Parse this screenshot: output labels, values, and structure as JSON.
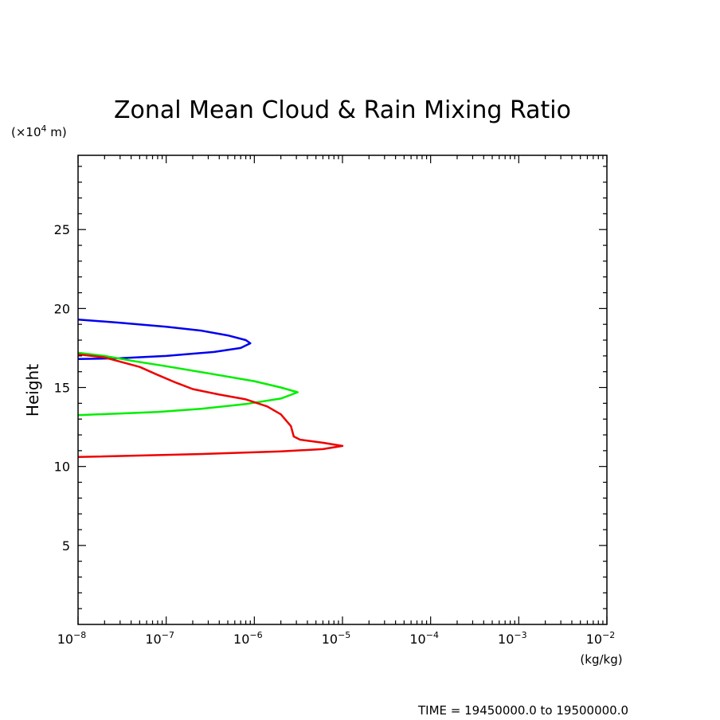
{
  "chart_data": {
    "type": "line",
    "title": "Zonal Mean Cloud & Rain Mixing Ratio",
    "xlabel": "(kg/kg)",
    "ylabel": "Height",
    "y_unit_label": {
      "prefix": "(×10",
      "exponent": "4",
      "suffix": " m)"
    },
    "x_scale": "log",
    "xlim": [
      1e-08,
      0.01
    ],
    "ylim": [
      0,
      29.7
    ],
    "x_ticks": [
      {
        "base": "10",
        "exp": "−8",
        "value": 1e-08
      },
      {
        "base": "10",
        "exp": "−7",
        "value": 1e-07
      },
      {
        "base": "10",
        "exp": "−6",
        "value": 1e-06
      },
      {
        "base": "10",
        "exp": "−5",
        "value": 1e-05
      },
      {
        "base": "10",
        "exp": "−4",
        "value": 0.0001
      },
      {
        "base": "10",
        "exp": "−3",
        "value": 0.001
      },
      {
        "base": "10",
        "exp": "−2",
        "value": 0.01
      }
    ],
    "y_ticks": [
      "5",
      "10",
      "15",
      "20",
      "25"
    ],
    "grid": false,
    "series": [
      {
        "color": "#0000ee",
        "points": [
          [
            1e-08,
            19.3
          ],
          [
            3e-08,
            19.1
          ],
          [
            1e-07,
            18.85
          ],
          [
            2.5e-07,
            18.6
          ],
          [
            5e-07,
            18.3
          ],
          [
            8e-07,
            18.0
          ],
          [
            9e-07,
            17.8
          ],
          [
            7e-07,
            17.5
          ],
          [
            3.5e-07,
            17.25
          ],
          [
            1e-07,
            17.0
          ],
          [
            3e-08,
            16.85
          ],
          [
            1e-08,
            16.8
          ]
        ]
      },
      {
        "color": "#00ee00",
        "points": [
          [
            1e-08,
            17.2
          ],
          [
            2e-08,
            17.0
          ],
          [
            4e-08,
            16.7
          ],
          [
            1e-07,
            16.35
          ],
          [
            3e-07,
            15.9
          ],
          [
            1e-06,
            15.4
          ],
          [
            2e-06,
            15.0
          ],
          [
            3.1e-06,
            14.7
          ],
          [
            2e-06,
            14.3
          ],
          [
            8e-07,
            13.95
          ],
          [
            2.5e-07,
            13.65
          ],
          [
            8e-08,
            13.45
          ],
          [
            1e-08,
            13.25
          ]
        ]
      },
      {
        "color": "#ee0000",
        "points": [
          [
            1e-08,
            17.1
          ],
          [
            2e-08,
            16.9
          ],
          [
            5e-08,
            16.3
          ],
          [
            8e-08,
            15.8
          ],
          [
            1.3e-07,
            15.3
          ],
          [
            2e-07,
            14.9
          ],
          [
            4e-07,
            14.55
          ],
          [
            8e-07,
            14.25
          ],
          [
            1.4e-06,
            13.8
          ],
          [
            2e-06,
            13.3
          ],
          [
            2.6e-06,
            12.55
          ],
          [
            2.8e-06,
            11.9
          ],
          [
            3.3e-06,
            11.7
          ],
          [
            6e-06,
            11.5
          ],
          [
            1e-05,
            11.3
          ],
          [
            6e-06,
            11.1
          ],
          [
            2e-06,
            10.95
          ],
          [
            3e-07,
            10.8
          ],
          [
            1e-08,
            10.6
          ]
        ]
      }
    ]
  },
  "footer": {
    "time_label": "TIME = 19450000.0 to 19500000.0"
  }
}
